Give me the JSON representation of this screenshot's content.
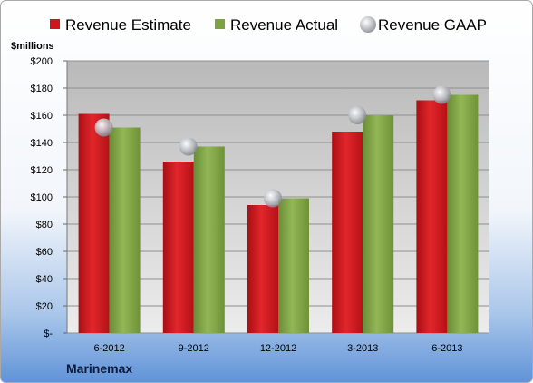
{
  "chart_data": {
    "type": "bar",
    "unit_label": "$millions",
    "company": "Marinemax",
    "categories": [
      "6-2012",
      "9-2012",
      "12-2012",
      "3-2013",
      "6-2013"
    ],
    "ylim": [
      0,
      200
    ],
    "yticks": [
      0,
      20,
      40,
      60,
      80,
      100,
      120,
      140,
      160,
      180,
      200
    ],
    "ytick_labels": [
      "$-",
      "$20",
      "$40",
      "$60",
      "$80",
      "$100",
      "$120",
      "$140",
      "$160",
      "$180",
      "$200"
    ],
    "grid": true,
    "legend_position": "top",
    "series": [
      {
        "name": "Revenue Estimate",
        "kind": "bar",
        "color": "#d0161c",
        "values": [
          161,
          126,
          94,
          148,
          171
        ]
      },
      {
        "name": "Revenue Actual",
        "kind": "bar",
        "color": "#7ea242",
        "values": [
          151,
          137,
          99,
          160,
          175
        ]
      },
      {
        "name": "Revenue GAAP",
        "kind": "marker",
        "color": "#a8aab0",
        "values": [
          151,
          137,
          99,
          160,
          175
        ]
      }
    ]
  }
}
